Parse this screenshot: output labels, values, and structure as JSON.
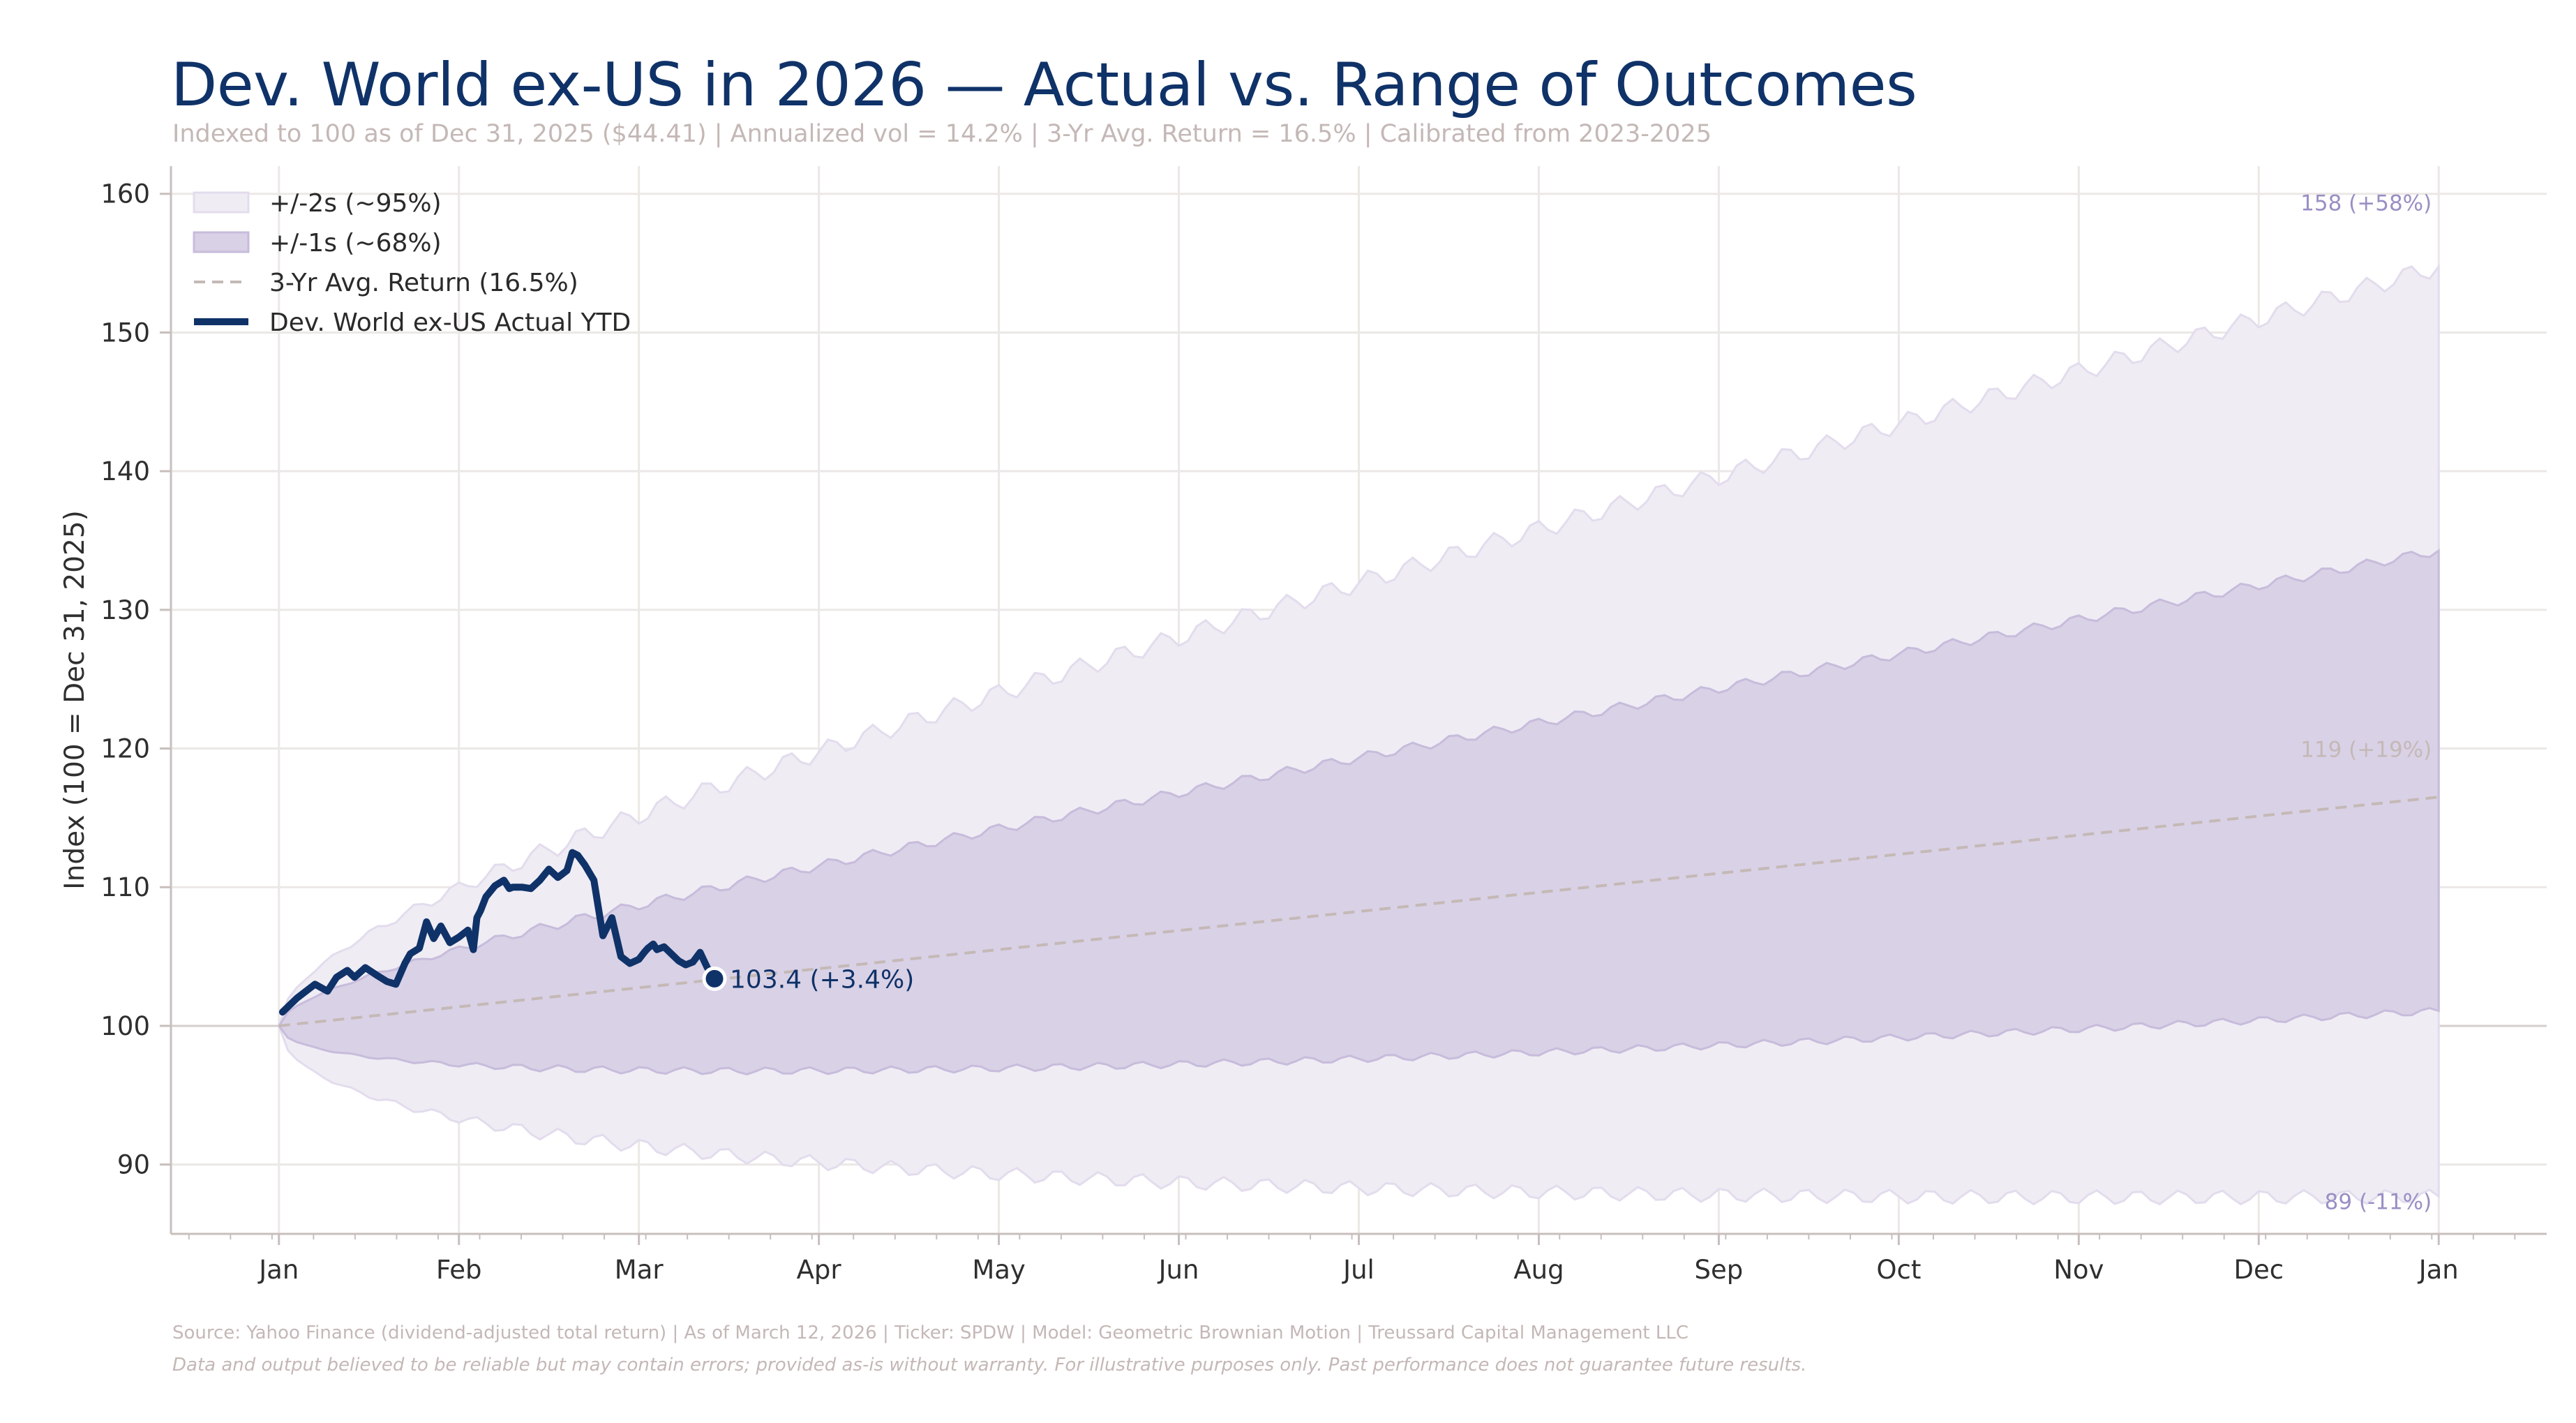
{
  "title": "Dev. World ex-US in 2026 — Actual vs. Range of Outcomes",
  "subtitle": "Indexed to 100 as of Dec 31, 2025 ($44.41)  |  Annualized vol = 14.2%  |  3-Yr Avg. Return = 16.5%  |  Calibrated from 2023-2025",
  "footer": {
    "source": "Source: Yahoo Finance (dividend-adjusted total return)  |  As of March 12, 2026  |  Ticker: SPDW  |  Model: Geometric Brownian Motion  |  Treussard Capital Management LLC",
    "disclaimer": "Data and output believed to be reliable but may contain errors; provided as-is without warranty. For illustrative purposes only. Past performance does not guarantee future results."
  },
  "colors": {
    "band2s": "#efecf4",
    "band2s_edge": "#e3dced",
    "band1s": "#d9d1e6",
    "band1s_edge": "#c7bcdb",
    "trend": "#c4b9b6",
    "actual": "#0f3268",
    "grid": "#ebe8e6",
    "axis": "#c8bfbd",
    "tick_text": "#2f2f2f",
    "end_label": "#9a8fc4",
    "trend_label": "#c4b9b6"
  },
  "chart_data": {
    "type": "area",
    "x_unit": "month of 2026 (0 = Jan 1, 12 = Jan 1 2027)",
    "xlabel": "",
    "ylabel": "Index (100 = Dec 31, 2025)",
    "xlim": [
      -0.6,
      12.6
    ],
    "ylim": [
      85,
      162
    ],
    "grid": true,
    "legend_position": "top-left",
    "x_ticks": [
      {
        "x": 0,
        "label": "Jan"
      },
      {
        "x": 1,
        "label": "Feb"
      },
      {
        "x": 2,
        "label": "Mar"
      },
      {
        "x": 3,
        "label": "Apr"
      },
      {
        "x": 4,
        "label": "May"
      },
      {
        "x": 5,
        "label": "Jun"
      },
      {
        "x": 6,
        "label": "Jul"
      },
      {
        "x": 7,
        "label": "Aug"
      },
      {
        "x": 8,
        "label": "Sep"
      },
      {
        "x": 9,
        "label": "Oct"
      },
      {
        "x": 10,
        "label": "Nov"
      },
      {
        "x": 11,
        "label": "Dec"
      },
      {
        "x": 12,
        "label": "Jan"
      }
    ],
    "y_ticks": [
      90,
      100,
      110,
      120,
      130,
      140,
      150,
      160
    ],
    "legend": [
      {
        "key": "band2s",
        "label": "+/-2s (~95%)"
      },
      {
        "key": "band1s",
        "label": "+/-1s (~68%)"
      },
      {
        "key": "trend",
        "label": "3-Yr Avg. Return (16.5%)"
      },
      {
        "key": "actual",
        "label": "Dev. World ex-US Actual YTD"
      }
    ],
    "model": {
      "annual_return": 0.165,
      "annual_vol": 0.142,
      "start": 100
    },
    "end_labels": {
      "upper2s": {
        "value": 158,
        "label": "158 (+58%)"
      },
      "trend": {
        "value": 119,
        "label": "119 (+19%)"
      },
      "lower2s": {
        "value": 89,
        "label": "89 (-11%)"
      }
    },
    "actual_series": {
      "name": "Dev. World ex-US Actual YTD",
      "x": [
        0.02,
        0.1,
        0.2,
        0.27,
        0.32,
        0.38,
        0.42,
        0.48,
        0.55,
        0.6,
        0.65,
        0.7,
        0.73,
        0.78,
        0.82,
        0.86,
        0.9,
        0.95,
        1.0,
        1.05,
        1.08,
        1.1,
        1.12,
        1.15,
        1.2,
        1.25,
        1.28,
        1.3,
        1.35,
        1.4,
        1.45,
        1.5,
        1.55,
        1.6,
        1.63,
        1.66,
        1.7,
        1.75,
        1.8,
        1.85,
        1.9,
        1.95,
        2.0,
        2.03,
        2.05,
        2.08,
        2.1,
        2.14,
        2.18,
        2.22,
        2.26,
        2.3,
        2.34,
        2.38,
        2.42
      ],
      "values": [
        101.0,
        102.0,
        103.0,
        102.5,
        103.5,
        104.0,
        103.5,
        104.2,
        103.6,
        103.2,
        103.0,
        104.5,
        105.2,
        105.6,
        107.5,
        106.3,
        107.2,
        106.0,
        106.4,
        106.9,
        105.5,
        107.8,
        108.3,
        109.3,
        110.1,
        110.5,
        109.9,
        110.0,
        110.0,
        109.9,
        110.5,
        111.3,
        110.7,
        111.2,
        112.5,
        112.3,
        111.6,
        110.5,
        106.5,
        107.8,
        105.0,
        104.5,
        104.8,
        105.3,
        105.6,
        105.9,
        105.5,
        105.7,
        105.2,
        104.7,
        104.4,
        104.6,
        105.3,
        104.2,
        103.4
      ]
    },
    "last_point": {
      "x": 2.42,
      "value": 103.4,
      "label": "103.4 (+3.4%)"
    }
  }
}
